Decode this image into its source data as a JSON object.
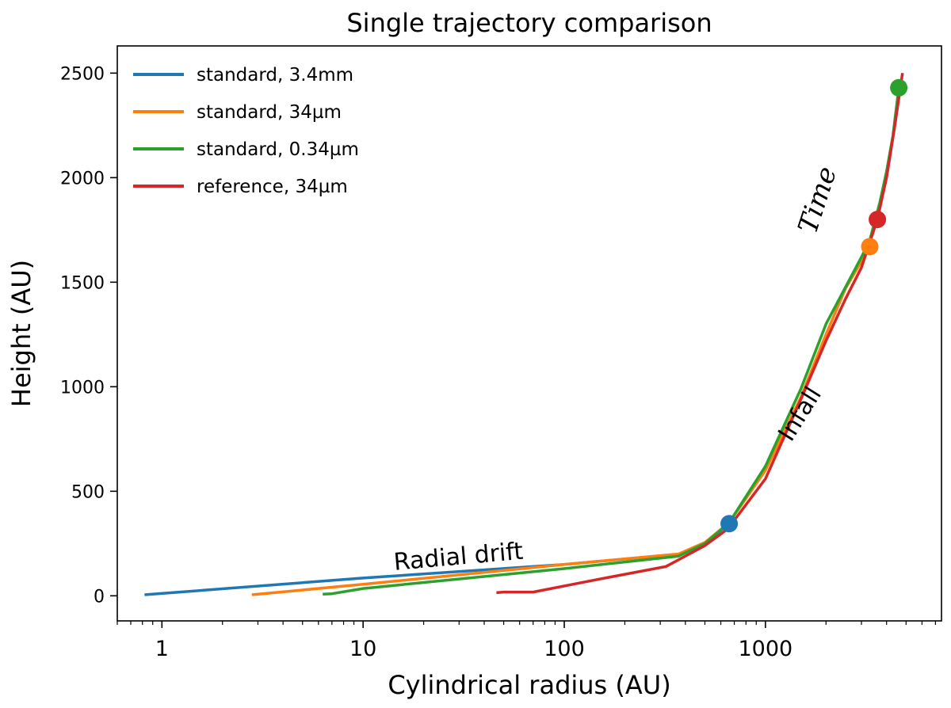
{
  "chart_data": {
    "type": "line",
    "title": "Single trajectory comparison",
    "xlabel": "Cylindrical radius (AU)",
    "ylabel": "Height (AU)",
    "xscale": "log",
    "xlim": [
      0.6,
      7500
    ],
    "ylim": [
      -120,
      2630
    ],
    "x_ticks": [
      1,
      10,
      100,
      1000
    ],
    "x_tick_labels": [
      "1",
      "10",
      "100",
      "1000"
    ],
    "y_ticks": [
      0,
      500,
      1000,
      1500,
      2000,
      2500
    ],
    "y_tick_labels": [
      "0",
      "500",
      "1000",
      "1500",
      "2000",
      "2500"
    ],
    "grid": false,
    "legend_position": "top-left",
    "series": [
      {
        "name": "standard, 3.4mm",
        "color": "#1f77b4",
        "points": [
          [
            0.82,
            5
          ],
          [
            10,
            85
          ],
          [
            100,
            150
          ],
          [
            380,
            200
          ],
          [
            500,
            250
          ],
          [
            660,
            345
          ]
        ],
        "marker": [
          660,
          345
        ]
      },
      {
        "name": "standard, 34µm",
        "color": "#ff7f0e",
        "points": [
          [
            2.8,
            5
          ],
          [
            10,
            55
          ],
          [
            100,
            150
          ],
          [
            370,
            200
          ],
          [
            500,
            255
          ],
          [
            660,
            350
          ],
          [
            1000,
            600
          ],
          [
            1500,
            950
          ],
          [
            2000,
            1250
          ],
          [
            2500,
            1470
          ],
          [
            3000,
            1600
          ],
          [
            3300,
            1670
          ]
        ],
        "marker": [
          3300,
          1670
        ]
      },
      {
        "name": "standard, 0.34µm",
        "color": "#2ca02c",
        "points": [
          [
            6.3,
            8
          ],
          [
            7,
            10
          ],
          [
            10,
            35
          ],
          [
            100,
            130
          ],
          [
            370,
            190
          ],
          [
            500,
            250
          ],
          [
            660,
            350
          ],
          [
            1000,
            620
          ],
          [
            1500,
            990
          ],
          [
            2000,
            1300
          ],
          [
            3000,
            1620
          ],
          [
            3300,
            1700
          ],
          [
            3700,
            1880
          ],
          [
            4000,
            2030
          ],
          [
            4300,
            2200
          ],
          [
            4600,
            2430
          ]
        ],
        "marker": [
          4600,
          2430
        ]
      },
      {
        "name": "reference, 34µm",
        "color": "#d62728",
        "points": [
          [
            46,
            15
          ],
          [
            50,
            18
          ],
          [
            70,
            18
          ],
          [
            150,
            80
          ],
          [
            320,
            140
          ],
          [
            500,
            240
          ],
          [
            650,
            320
          ],
          [
            1000,
            560
          ],
          [
            1500,
            940
          ],
          [
            2000,
            1220
          ],
          [
            2500,
            1420
          ],
          [
            3000,
            1570
          ],
          [
            3600,
            1800
          ],
          [
            4000,
            2000
          ],
          [
            4400,
            2250
          ],
          [
            4800,
            2500
          ]
        ],
        "marker": [
          3600,
          1800
        ]
      }
    ],
    "annotations": [
      {
        "text": "Radial drift",
        "x": 30,
        "y": 150,
        "rotation_deg": -5,
        "style": "sans"
      },
      {
        "text": "Infall",
        "x": 1600,
        "y": 850,
        "rotation_deg": -58,
        "style": "sans"
      },
      {
        "text": "Time",
        "x": 2000,
        "y": 1880,
        "rotation_deg": -72,
        "style": "serif-italic"
      }
    ]
  }
}
